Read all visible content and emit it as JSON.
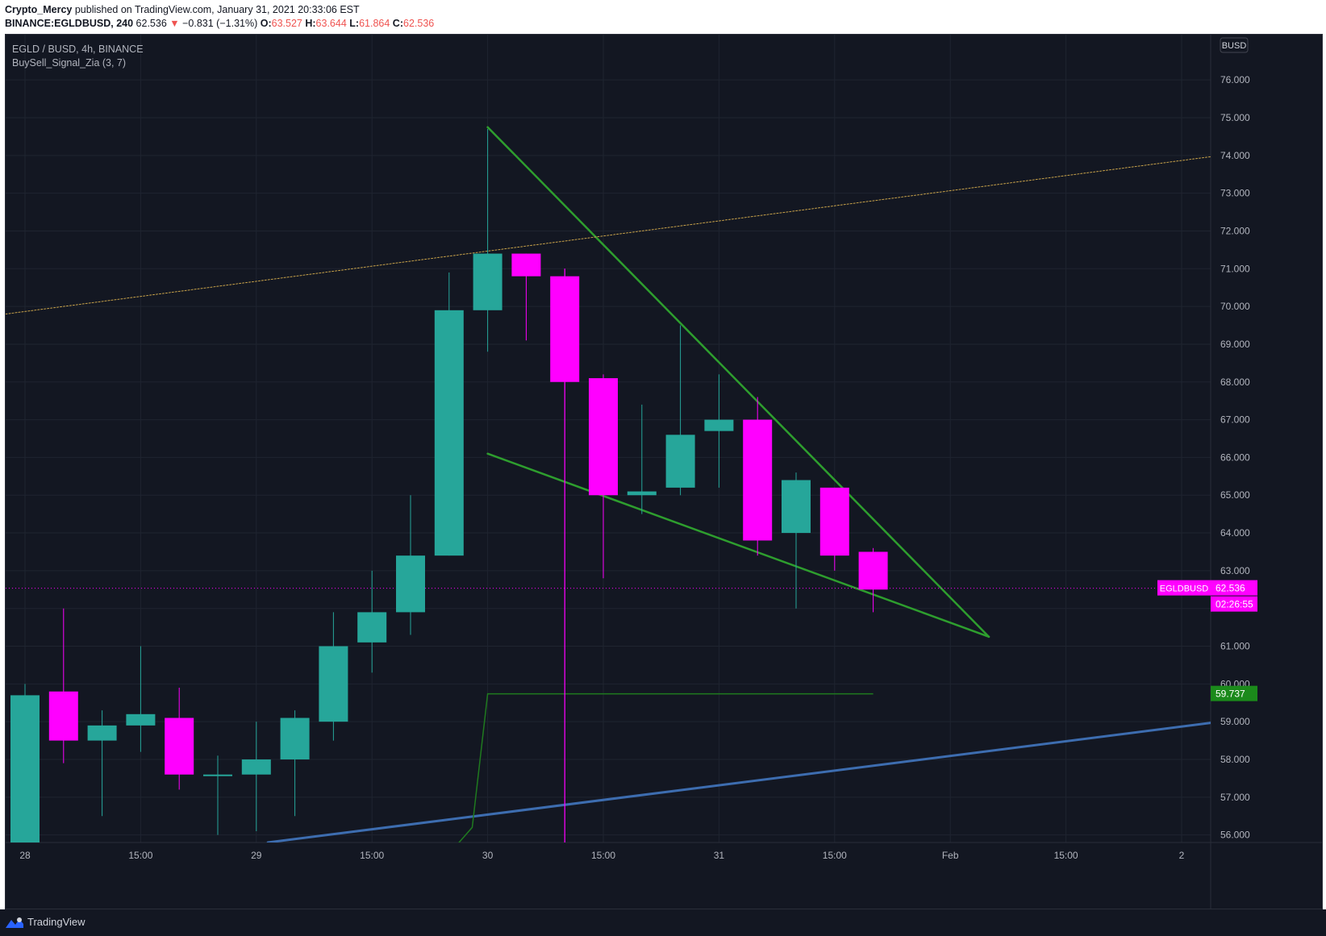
{
  "header": {
    "author": "Crypto_Mercy",
    "published_text": "published on TradingView.com, January 31, 2021 20:33:06 EST",
    "symbol_line": "BINANCE:EGLDBUSD, 240",
    "price": "62.536",
    "change_arrow": "▼",
    "change": "−0.831 (−1.31%)",
    "o_label": "O:",
    "o_value": "63.527",
    "h_label": "H:",
    "h_value": "63.644",
    "l_label": "L:",
    "l_value": "61.864",
    "c_label": "C:",
    "c_value": "62.536"
  },
  "legend": {
    "pair": "EGLD / BUSD, 4h, BINANCE",
    "indicator": "BuySell_Signal_Zia (3, 7)"
  },
  "footer": {
    "brand": "TradingView"
  },
  "colors": {
    "background": "#131722",
    "grid": "#1f2430",
    "up": "#26a69a",
    "down": "#ff00ff",
    "trendline": "#2e9e2e",
    "support_line": "#3d6db0",
    "dotted_line": "#c8a24a",
    "axis_text": "#b2b5be"
  },
  "chart_data": {
    "type": "candlestick",
    "currency_badge": "BUSD",
    "y_ticks": [
      "56.000",
      "57.000",
      "58.000",
      "59.000",
      "60.000",
      "61.000",
      "62.000",
      "63.000",
      "64.000",
      "65.000",
      "66.000",
      "67.000",
      "68.000",
      "69.000",
      "70.000",
      "71.000",
      "72.000",
      "73.000",
      "74.000",
      "75.000",
      "76.000"
    ],
    "ylim": [
      55.8,
      77.2
    ],
    "x_ticks": [
      {
        "label": "28",
        "index": 0
      },
      {
        "label": "15:00",
        "index": 3
      },
      {
        "label": "29",
        "index": 6
      },
      {
        "label": "15:00",
        "index": 9
      },
      {
        "label": "30",
        "index": 12
      },
      {
        "label": "15:00",
        "index": 15
      },
      {
        "label": "31",
        "index": 18
      },
      {
        "label": "15:00",
        "index": 21
      },
      {
        "label": "Feb",
        "index": 24
      },
      {
        "label": "15:00",
        "index": 27
      },
      {
        "label": "2",
        "index": 30
      }
    ],
    "candles": [
      {
        "o": 55.8,
        "h": 60.0,
        "l": 55.8,
        "c": 59.7
      },
      {
        "o": 59.8,
        "h": 62.0,
        "l": 57.9,
        "c": 58.5
      },
      {
        "o": 58.5,
        "h": 59.3,
        "l": 56.5,
        "c": 58.9
      },
      {
        "o": 58.9,
        "h": 61.0,
        "l": 58.2,
        "c": 59.2
      },
      {
        "o": 59.1,
        "h": 59.9,
        "l": 57.2,
        "c": 57.6
      },
      {
        "o": 57.6,
        "h": 58.1,
        "l": 56.0,
        "c": 57.6
      },
      {
        "o": 57.6,
        "h": 59.0,
        "l": 56.1,
        "c": 58.0
      },
      {
        "o": 58.0,
        "h": 59.3,
        "l": 56.5,
        "c": 59.1
      },
      {
        "o": 59.0,
        "h": 61.9,
        "l": 58.5,
        "c": 61.0
      },
      {
        "o": 61.1,
        "h": 63.0,
        "l": 60.3,
        "c": 61.9
      },
      {
        "o": 61.9,
        "h": 65.0,
        "l": 61.3,
        "c": 63.4
      },
      {
        "o": 63.4,
        "h": 70.9,
        "l": 63.4,
        "c": 69.9
      },
      {
        "o": 69.9,
        "h": 74.7,
        "l": 68.8,
        "c": 71.4
      },
      {
        "o": 71.4,
        "h": 71.4,
        "l": 69.1,
        "c": 70.8
      },
      {
        "o": 70.8,
        "h": 71.0,
        "l": 55.8,
        "c": 68.0
      },
      {
        "o": 68.1,
        "h": 68.2,
        "l": 62.8,
        "c": 65.0
      },
      {
        "o": 65.0,
        "h": 67.4,
        "l": 64.5,
        "c": 65.1
      },
      {
        "o": 65.2,
        "h": 69.5,
        "l": 65.0,
        "c": 66.6
      },
      {
        "o": 66.7,
        "h": 68.2,
        "l": 65.2,
        "c": 67.0
      },
      {
        "o": 67.0,
        "h": 67.6,
        "l": 63.4,
        "c": 63.8
      },
      {
        "o": 64.0,
        "h": 65.6,
        "l": 62.0,
        "c": 65.4
      },
      {
        "o": 65.2,
        "h": 65.2,
        "l": 63.0,
        "c": 63.4
      },
      {
        "o": 63.5,
        "h": 63.6,
        "l": 61.9,
        "c": 62.5
      }
    ],
    "trendlines": [
      {
        "name": "upper-wedge-line",
        "from": {
          "index": 12.0,
          "price": 74.75
        },
        "to": {
          "index": 25.0,
          "price": 61.25
        }
      },
      {
        "name": "lower-wedge-line",
        "from": {
          "index": 12.0,
          "price": 66.1
        },
        "to": {
          "index": 25.0,
          "price": 61.25
        }
      },
      {
        "name": "rising-support-line",
        "from": {
          "index": 6.3,
          "price": 55.8
        },
        "to": {
          "index": 31.0,
          "price": 59.0
        }
      },
      {
        "name": "dotted-resistance-line",
        "from": {
          "index": -0.5,
          "price": 69.8
        },
        "to": {
          "index": 31.0,
          "price": 74.0
        }
      }
    ],
    "signal_line": {
      "points": [
        {
          "index": 11.0,
          "price": 55.5
        },
        {
          "index": 11.6,
          "price": 56.2
        },
        {
          "index": 12.0,
          "price": 59.737
        },
        {
          "index": 22.0,
          "price": 59.737
        }
      ]
    },
    "vertical_marker": {
      "index": 14.0,
      "from": 55.8,
      "to": 71.0
    },
    "current_price": {
      "value": 62.536,
      "symbol": "EGLDBUSD",
      "label": "62.536",
      "countdown": "02:26:55"
    },
    "signal_level": {
      "value": 59.737,
      "label": "59.737"
    }
  }
}
